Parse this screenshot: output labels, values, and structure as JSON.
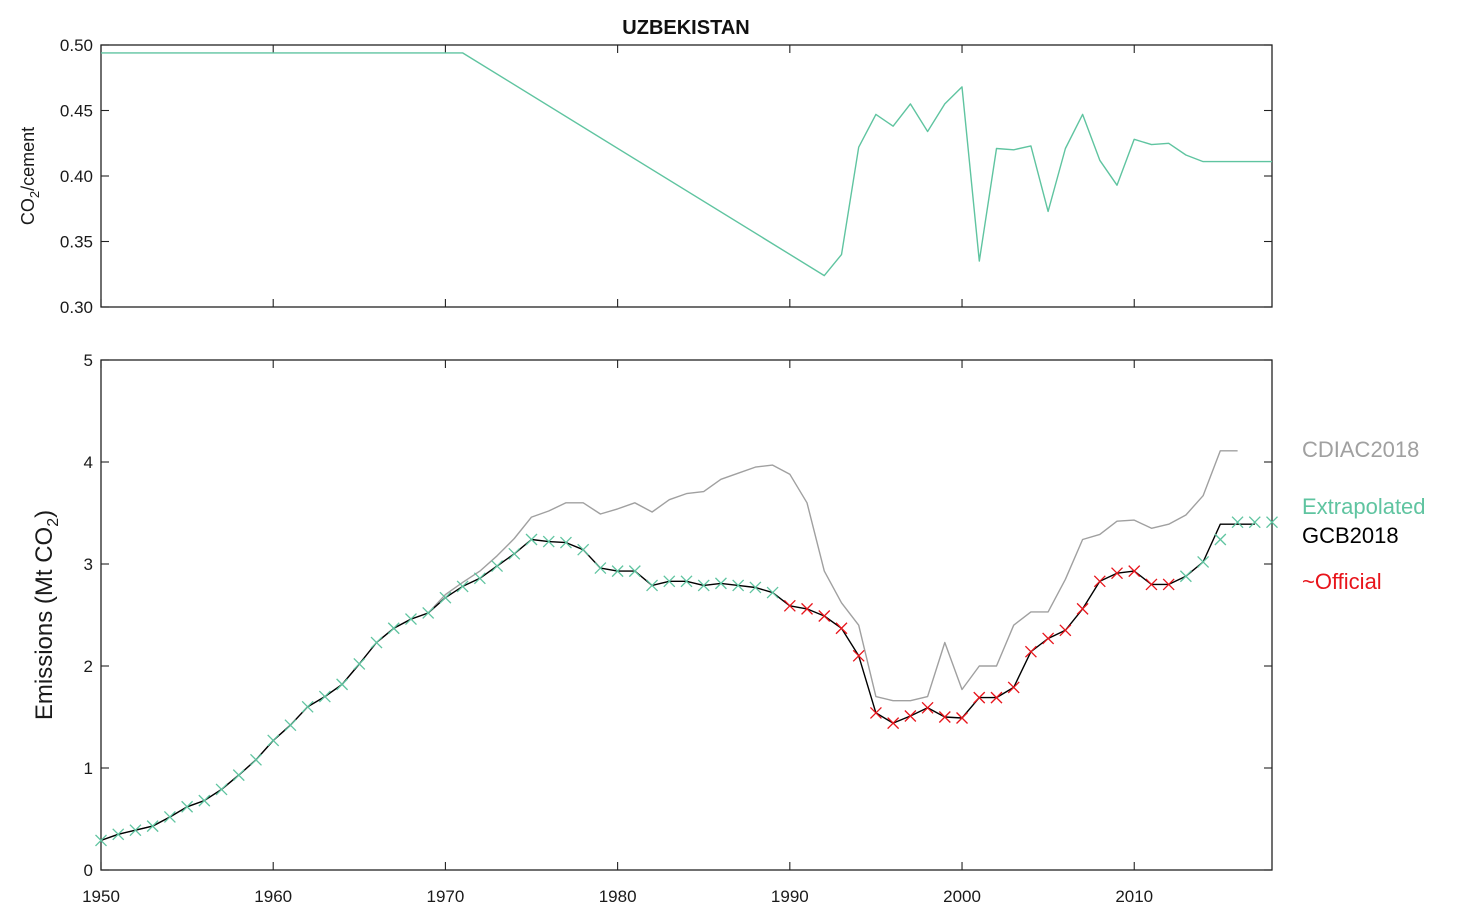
{
  "title": "UZBEKISTAN",
  "colors": {
    "cdiac": "#a0a0a0",
    "extrapolated": "#5fc4a0",
    "gcb": "#000000",
    "official": "#e8141b",
    "axis": "#222222"
  },
  "legend": {
    "cdiac": "CDIAC2018",
    "extrapolated": "Extrapolated",
    "gcb": "GCB2018",
    "official": "~Official"
  },
  "chart_data": [
    {
      "type": "line",
      "title": "UZBEKISTAN",
      "ylabel_main": "CO",
      "ylabel_sub": "2",
      "ylabel_tail": "/cement",
      "xlim": [
        1950,
        2018
      ],
      "ylim": [
        0.3,
        0.5
      ],
      "x_ticks": [
        1950,
        1960,
        1970,
        1980,
        1990,
        2000,
        2010
      ],
      "y_ticks": [
        0.3,
        0.35,
        0.4,
        0.45,
        0.5
      ],
      "y_tick_labels": [
        "0.30",
        "0.35",
        "0.40",
        "0.45",
        "0.50"
      ],
      "grid": false,
      "series": [
        {
          "color": "#5fc4a0",
          "x": [
            1950,
            1971,
            1992,
            1993,
            1994,
            1995,
            1996,
            1997,
            1998,
            1999,
            2000,
            2001,
            2002,
            2003,
            2004,
            2005,
            2006,
            2007,
            2008,
            2009,
            2010,
            2011,
            2012,
            2013,
            2014,
            2015,
            2016,
            2017,
            2018
          ],
          "y": [
            0.494,
            0.494,
            0.324,
            0.34,
            0.422,
            0.447,
            0.438,
            0.455,
            0.434,
            0.455,
            0.468,
            0.335,
            0.421,
            0.42,
            0.423,
            0.373,
            0.421,
            0.447,
            0.412,
            0.393,
            0.428,
            0.424,
            0.425,
            0.416,
            0.411,
            0.411,
            0.411,
            0.411,
            0.411
          ]
        }
      ]
    },
    {
      "type": "line",
      "ylabel_main": "Emissions (Mt CO",
      "ylabel_sub": "2",
      "ylabel_tail": ")",
      "xlim": [
        1950,
        2018
      ],
      "ylim": [
        0,
        5
      ],
      "x_ticks": [
        1950,
        1960,
        1970,
        1980,
        1990,
        2000,
        2010
      ],
      "x_tick_labels": [
        "1950",
        "1960",
        "1970",
        "1980",
        "1990",
        "2000",
        "2010"
      ],
      "y_ticks": [
        0,
        1,
        2,
        3,
        4,
        5
      ],
      "y_tick_labels": [
        "0",
        "1",
        "2",
        "3",
        "4",
        "5"
      ],
      "grid": false,
      "series": [
        {
          "name": "CDIAC2018",
          "color": "#a0a0a0",
          "x": [
            1950,
            1951,
            1952,
            1953,
            1954,
            1955,
            1956,
            1957,
            1958,
            1959,
            1960,
            1961,
            1962,
            1963,
            1964,
            1965,
            1966,
            1967,
            1968,
            1969,
            1970,
            1971,
            1972,
            1973,
            1974,
            1975,
            1976,
            1977,
            1978,
            1979,
            1980,
            1981,
            1982,
            1983,
            1984,
            1985,
            1986,
            1987,
            1988,
            1989,
            1990,
            1991,
            1992,
            1993,
            1994,
            1995,
            1996,
            1997,
            1998,
            1999,
            2000,
            2001,
            2002,
            2003,
            2004,
            2005,
            2006,
            2007,
            2008,
            2009,
            2010,
            2011,
            2012,
            2013,
            2014,
            2015,
            2016
          ],
          "y": [
            0.29,
            0.35,
            0.39,
            0.43,
            0.52,
            0.62,
            0.68,
            0.79,
            0.93,
            1.08,
            1.27,
            1.42,
            1.6,
            1.7,
            1.82,
            2.02,
            2.23,
            2.37,
            2.46,
            2.52,
            2.7,
            2.82,
            2.93,
            3.08,
            3.25,
            3.46,
            3.52,
            3.6,
            3.6,
            3.49,
            3.54,
            3.6,
            3.51,
            3.63,
            3.69,
            3.71,
            3.83,
            3.89,
            3.95,
            3.97,
            3.88,
            3.6,
            2.93,
            2.62,
            2.4,
            1.7,
            1.66,
            1.66,
            1.7,
            2.23,
            1.77,
            2.0,
            2.0,
            2.4,
            2.53,
            2.53,
            2.85,
            3.24,
            3.29,
            3.42,
            3.43,
            3.35,
            3.39,
            3.48,
            3.67,
            4.11,
            4.11
          ]
        },
        {
          "name": "GCB2018",
          "color": "#000000",
          "x": [
            1950,
            1951,
            1952,
            1953,
            1954,
            1955,
            1956,
            1957,
            1958,
            1959,
            1960,
            1961,
            1962,
            1963,
            1964,
            1965,
            1966,
            1967,
            1968,
            1969,
            1970,
            1971,
            1972,
            1973,
            1974,
            1975,
            1976,
            1977,
            1978,
            1979,
            1980,
            1981,
            1982,
            1983,
            1984,
            1985,
            1986,
            1987,
            1988,
            1989,
            1990,
            1991,
            1992,
            1993,
            1994,
            1995,
            1996,
            1997,
            1998,
            1999,
            2000,
            2001,
            2002,
            2003,
            2004,
            2005,
            2006,
            2007,
            2008,
            2009,
            2010,
            2011,
            2012,
            2013,
            2014,
            2015,
            2016,
            2017
          ],
          "y": [
            0.29,
            0.35,
            0.39,
            0.43,
            0.52,
            0.62,
            0.68,
            0.79,
            0.93,
            1.08,
            1.27,
            1.42,
            1.6,
            1.7,
            1.82,
            2.02,
            2.23,
            2.37,
            2.46,
            2.52,
            2.67,
            2.78,
            2.86,
            2.98,
            3.1,
            3.24,
            3.22,
            3.21,
            3.14,
            2.96,
            2.93,
            2.93,
            2.79,
            2.83,
            2.83,
            2.79,
            2.81,
            2.79,
            2.77,
            2.72,
            2.59,
            2.56,
            2.49,
            2.37,
            2.1,
            1.54,
            1.44,
            1.51,
            1.59,
            1.5,
            1.49,
            1.69,
            1.69,
            1.79,
            2.14,
            2.27,
            2.35,
            2.56,
            2.83,
            2.91,
            2.93,
            2.8,
            2.8,
            2.88,
            3.02,
            3.39,
            3.39,
            3.39
          ]
        },
        {
          "name": "Extrapolated",
          "color": "#5fc4a0",
          "marker": "x",
          "x": [
            1950,
            1951,
            1952,
            1953,
            1954,
            1955,
            1956,
            1957,
            1958,
            1959,
            1960,
            1961,
            1962,
            1963,
            1964,
            1965,
            1966,
            1967,
            1968,
            1969,
            1970,
            1971,
            1972,
            1973,
            1974,
            1975,
            1976,
            1977,
            1978,
            1979,
            1980,
            1981,
            1982,
            1983,
            1984,
            1985,
            1986,
            1987,
            1988,
            1989,
            2013,
            2014,
            2015,
            2016,
            2017,
            2018
          ],
          "y": [
            0.29,
            0.35,
            0.39,
            0.43,
            0.52,
            0.62,
            0.68,
            0.79,
            0.93,
            1.08,
            1.27,
            1.42,
            1.6,
            1.7,
            1.82,
            2.02,
            2.23,
            2.37,
            2.46,
            2.52,
            2.67,
            2.78,
            2.86,
            2.98,
            3.1,
            3.24,
            3.22,
            3.21,
            3.14,
            2.96,
            2.93,
            2.93,
            2.79,
            2.83,
            2.83,
            2.79,
            2.81,
            2.79,
            2.77,
            2.72,
            2.88,
            3.02,
            3.24,
            3.41,
            3.41,
            3.41
          ]
        },
        {
          "name": "~Official",
          "color": "#e8141b",
          "marker": "x",
          "x": [
            1990,
            1991,
            1992,
            1993,
            1994,
            1995,
            1996,
            1997,
            1998,
            1999,
            2000,
            2001,
            2002,
            2003,
            2004,
            2005,
            2006,
            2007,
            2008,
            2009,
            2010,
            2011,
            2012
          ],
          "y": [
            2.59,
            2.56,
            2.49,
            2.37,
            2.1,
            1.54,
            1.44,
            1.51,
            1.59,
            1.5,
            1.49,
            1.69,
            1.69,
            1.79,
            2.14,
            2.27,
            2.35,
            2.56,
            2.83,
            2.91,
            2.93,
            2.8,
            2.8
          ]
        }
      ],
      "legend_position": "right"
    }
  ]
}
